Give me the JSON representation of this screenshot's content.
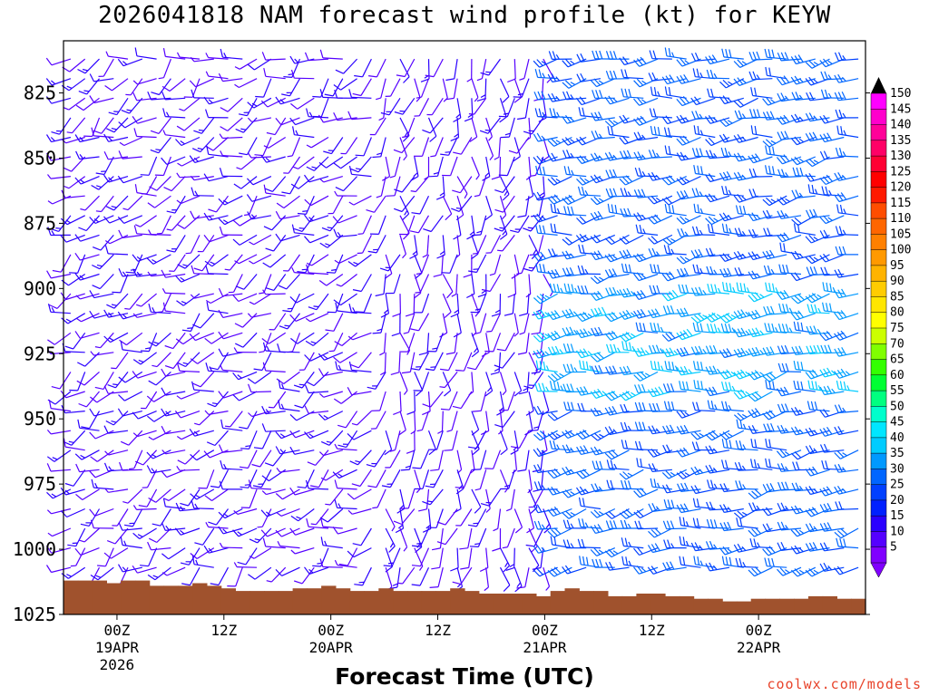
{
  "chart_data": {
    "type": "wind_barb_profile",
    "title": "2026041818 NAM forecast wind profile (kt) for KEYW",
    "xlabel": "Forecast Time (UTC)",
    "ylabel": "",
    "y_ticks": [
      "825",
      "850",
      "875",
      "900",
      "925",
      "950",
      "975",
      "1000",
      "1025"
    ],
    "y_tick_values": [
      825,
      850,
      875,
      900,
      925,
      950,
      975,
      1000,
      1025
    ],
    "ylim": [
      1025,
      805
    ],
    "x_ticks": [
      {
        "time": "00Z",
        "date": "19APR",
        "year": "2026",
        "hour": 0
      },
      {
        "time": "12Z",
        "date": "",
        "year": "",
        "hour": 12
      },
      {
        "time": "00Z",
        "date": "20APR",
        "year": "",
        "hour": 24
      },
      {
        "time": "12Z",
        "date": "",
        "year": "",
        "hour": 36
      },
      {
        "time": "00Z",
        "date": "21APR",
        "year": "",
        "hour": 48
      },
      {
        "time": "12Z",
        "date": "",
        "year": "",
        "hour": 60
      },
      {
        "time": "00Z",
        "date": "22APR",
        "year": "",
        "hour": 72
      }
    ],
    "xlim_hours": [
      -6,
      84
    ],
    "colorbar": {
      "levels": [
        "150",
        "145",
        "140",
        "135",
        "130",
        "125",
        "120",
        "115",
        "110",
        "105",
        "100",
        "95",
        "90",
        "85",
        "80",
        "75",
        "70",
        "65",
        "60",
        "55",
        "50",
        "45",
        "40",
        "35",
        "30",
        "25",
        "20",
        "15",
        "10",
        "5"
      ],
      "colors": [
        "#ff00ff",
        "#ff00cc",
        "#ff0099",
        "#ff0066",
        "#ff0033",
        "#ff0000",
        "#ff1a00",
        "#ff4d00",
        "#ff6600",
        "#ff8000",
        "#ff9900",
        "#ffb300",
        "#ffcc00",
        "#ffe600",
        "#ffff00",
        "#ccff00",
        "#80ff00",
        "#33ff00",
        "#00ff33",
        "#00ff80",
        "#00ffcc",
        "#00e6ff",
        "#00ccff",
        "#0099ff",
        "#0066ff",
        "#0040ff",
        "#0020ff",
        "#2a00ff",
        "#5500ff",
        "#8000ff"
      ]
    },
    "surface_color": "#a0522d",
    "surface_pressure_hpa": [
      1012,
      1012,
      1012,
      1013,
      1012,
      1012,
      1014,
      1014,
      1014,
      1013,
      1014,
      1015,
      1016,
      1016,
      1016,
      1016,
      1015,
      1015,
      1014,
      1015,
      1016,
      1016,
      1015,
      1016,
      1016,
      1016,
      1016,
      1015,
      1016,
      1017,
      1017,
      1017,
      1017,
      1018,
      1016,
      1015,
      1016,
      1016,
      1018,
      1018,
      1017,
      1017,
      1018,
      1018,
      1019,
      1019,
      1020,
      1020,
      1019,
      1019,
      1019,
      1019,
      1018,
      1018,
      1019,
      1019
    ],
    "barb_regimes": [
      {
        "hours": [
          -6,
          30
        ],
        "levels": "all",
        "direction": "northerly_to_easterly",
        "speed_kt": [
          5,
          15
        ],
        "color": "#8000ff"
      },
      {
        "hours": [
          30,
          48
        ],
        "levels": "all",
        "direction": "southerly_to_easterly",
        "speed_kt": [
          5,
          15
        ],
        "color": "#8000ff"
      },
      {
        "hours": [
          50,
          84
        ],
        "levels": "all",
        "direction": "easterly",
        "speed_kt": [
          15,
          35
        ],
        "color": "#0066ff"
      }
    ]
  },
  "credit": "coolwx.com/models"
}
